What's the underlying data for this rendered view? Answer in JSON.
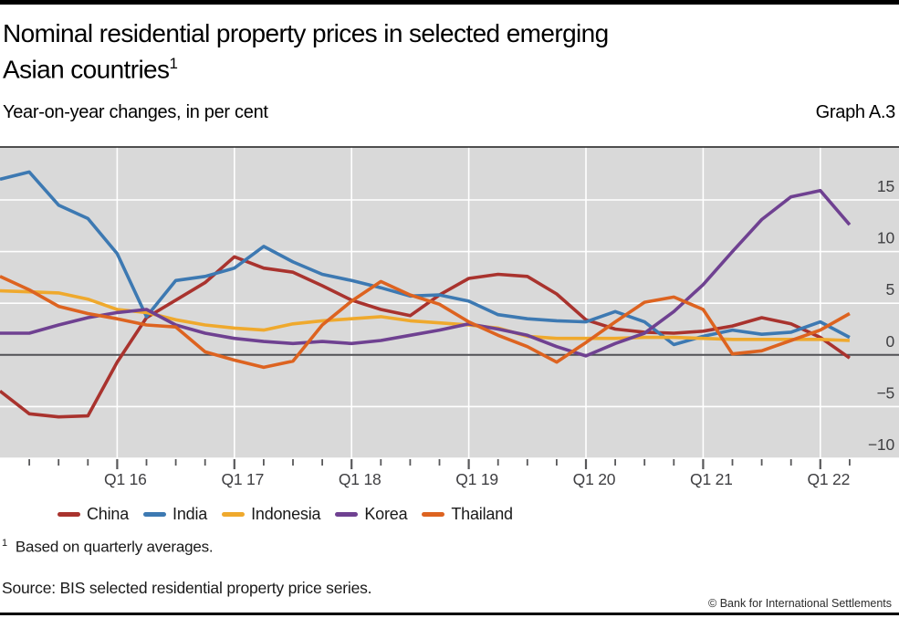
{
  "header": {
    "title_line1": "Nominal residential property prices in selected emerging",
    "title_line2": "Asian countries",
    "title_superscript": "1",
    "subtitle": "Year-on-year changes, in per cent",
    "graph_label": "Graph A.3"
  },
  "legend": [
    {
      "label": "China",
      "color": "#a9332e"
    },
    {
      "label": "India",
      "color": "#3d79b2"
    },
    {
      "label": "Indonesia",
      "color": "#efa92d"
    },
    {
      "label": "Korea",
      "color": "#6f4191"
    },
    {
      "label": "Thailand",
      "color": "#dd6320"
    }
  ],
  "footer": {
    "footnote_marker": "1",
    "footnote_text": "Based on quarterly averages.",
    "source": "Source: BIS selected residential property price series.",
    "copyright": "© Bank for International Settlements"
  },
  "chart_data": {
    "type": "line",
    "title": "Nominal residential property prices in selected emerging Asian countries",
    "ylabel": "Year-on-year changes, in per cent",
    "x_unit": "quarter",
    "x_range": [
      "Q1 2015",
      "Q2 2022"
    ],
    "n_points": 30,
    "ylim": [
      -10,
      20
    ],
    "grid": true,
    "legend_position": "bottom",
    "colors": {
      "plot_background": "#d9d9d9",
      "gridline": "#ffffff",
      "zero_line": "#515155",
      "top_border": "#1a1a1a",
      "tick": "#58585a",
      "axis_label": "#3f3f42"
    },
    "x_ticks": {
      "major_indices": [
        4,
        8,
        12,
        16,
        20,
        24,
        28
      ],
      "labels": [
        "Q1 16",
        "Q1 17",
        "Q1 18",
        "Q1 19",
        "Q1 20",
        "Q1 21",
        "Q1 22"
      ]
    },
    "y_ticks": {
      "values": [
        15,
        10,
        5,
        0,
        -5,
        -10
      ],
      "labels": [
        "15",
        "10",
        "5",
        "0",
        "−5",
        "−10"
      ]
    },
    "series": [
      {
        "name": "China",
        "color": "#a9332e",
        "values": [
          -3.5,
          -5.7,
          -6.0,
          -5.9,
          -0.7,
          3.6,
          5.3,
          7.0,
          9.5,
          8.4,
          8.0,
          6.7,
          5.3,
          4.4,
          3.8,
          5.8,
          7.4,
          7.8,
          7.6,
          5.9,
          3.4,
          2.5,
          2.2,
          2.1,
          2.3,
          2.8,
          3.6,
          3.0,
          1.7,
          -0.3
        ]
      },
      {
        "name": "India",
        "color": "#3d79b2",
        "values": [
          17.0,
          17.7,
          14.5,
          13.2,
          9.8,
          3.7,
          7.2,
          7.6,
          8.4,
          10.5,
          9.0,
          7.8,
          7.2,
          6.5,
          5.7,
          5.8,
          5.2,
          3.9,
          3.5,
          3.3,
          3.2,
          4.2,
          3.2,
          1.0,
          1.8,
          2.4,
          2.0,
          2.2,
          3.2,
          1.7
        ]
      },
      {
        "name": "Indonesia",
        "color": "#efa92d",
        "values": [
          6.2,
          6.1,
          6.0,
          5.4,
          4.4,
          4.1,
          3.4,
          2.9,
          2.6,
          2.4,
          3.0,
          3.3,
          3.5,
          3.7,
          3.3,
          3.1,
          2.9,
          2.6,
          1.8,
          1.6,
          1.6,
          1.6,
          1.7,
          1.7,
          1.6,
          1.5,
          1.5,
          1.5,
          1.5,
          1.4
        ]
      },
      {
        "name": "Korea",
        "color": "#6f4191",
        "values": [
          2.1,
          2.1,
          2.9,
          3.6,
          4.1,
          4.4,
          2.9,
          2.1,
          1.6,
          1.3,
          1.1,
          1.3,
          1.1,
          1.4,
          1.9,
          2.4,
          3.0,
          2.5,
          1.9,
          0.8,
          -0.1,
          1.1,
          2.1,
          4.2,
          6.8,
          10.0,
          13.1,
          15.3,
          15.9,
          12.6
        ]
      },
      {
        "name": "Thailand",
        "color": "#dd6320",
        "values": [
          7.6,
          6.3,
          4.7,
          4.0,
          3.5,
          2.9,
          2.7,
          0.3,
          -0.5,
          -1.2,
          -0.6,
          2.9,
          5.2,
          7.1,
          5.8,
          4.9,
          3.2,
          1.9,
          0.8,
          -0.7,
          1.2,
          3.2,
          5.1,
          5.6,
          4.4,
          0.1,
          0.4,
          1.4,
          2.4,
          4.0
        ]
      }
    ]
  }
}
